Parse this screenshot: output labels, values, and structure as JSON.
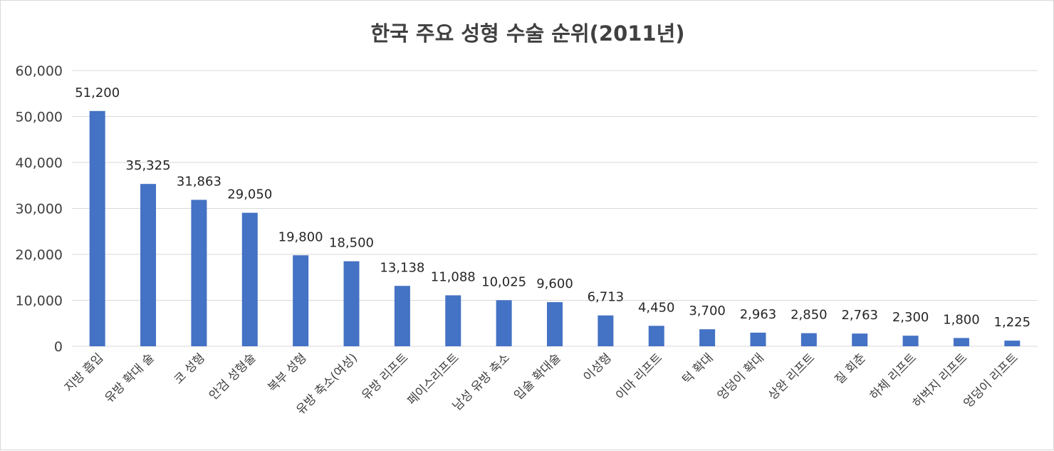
{
  "chart_data": {
    "type": "bar",
    "title": "한국 주요 성형 수술 순위(2011년)",
    "xlabel": "",
    "ylabel": "",
    "ylim": [
      0,
      60000
    ],
    "yticks": [
      0,
      10000,
      20000,
      30000,
      40000,
      50000,
      60000
    ],
    "ytick_labels": [
      "0",
      "10,000",
      "20,000",
      "30,000",
      "40,000",
      "50,000",
      "60,000"
    ],
    "grid": true,
    "legend": "none",
    "bar_color": "#4472c4",
    "categories": [
      "지방 흡입",
      "유방 확대 술",
      "코 성형",
      "안검 성형술",
      "복부 성형",
      "유방 축소(여성)",
      "유방 리프트",
      "페이스리프트",
      "남성 유방 축소",
      "입술 확대술",
      "이성형",
      "이마 리프트",
      "턱 확대",
      "엉덩이 확대",
      "상완 리프트",
      "질 회춘",
      "하체 리프트",
      "허벅지 리프트",
      "엉덩이 리프트"
    ],
    "values": [
      51200,
      35325,
      31863,
      29050,
      19800,
      18500,
      13138,
      11088,
      10025,
      9600,
      6713,
      4450,
      3700,
      2963,
      2850,
      2763,
      2300,
      1800,
      1225
    ],
    "data_labels": [
      "51,200",
      "35,325",
      "31,863",
      "29,050",
      "19,800",
      "18,500",
      "13,138",
      "11,088",
      "10,025",
      "9,600",
      "6,713",
      "4,450",
      "3,700",
      "2,963",
      "2,850",
      "2,763",
      "2,300",
      "1,800",
      "1,225"
    ]
  }
}
